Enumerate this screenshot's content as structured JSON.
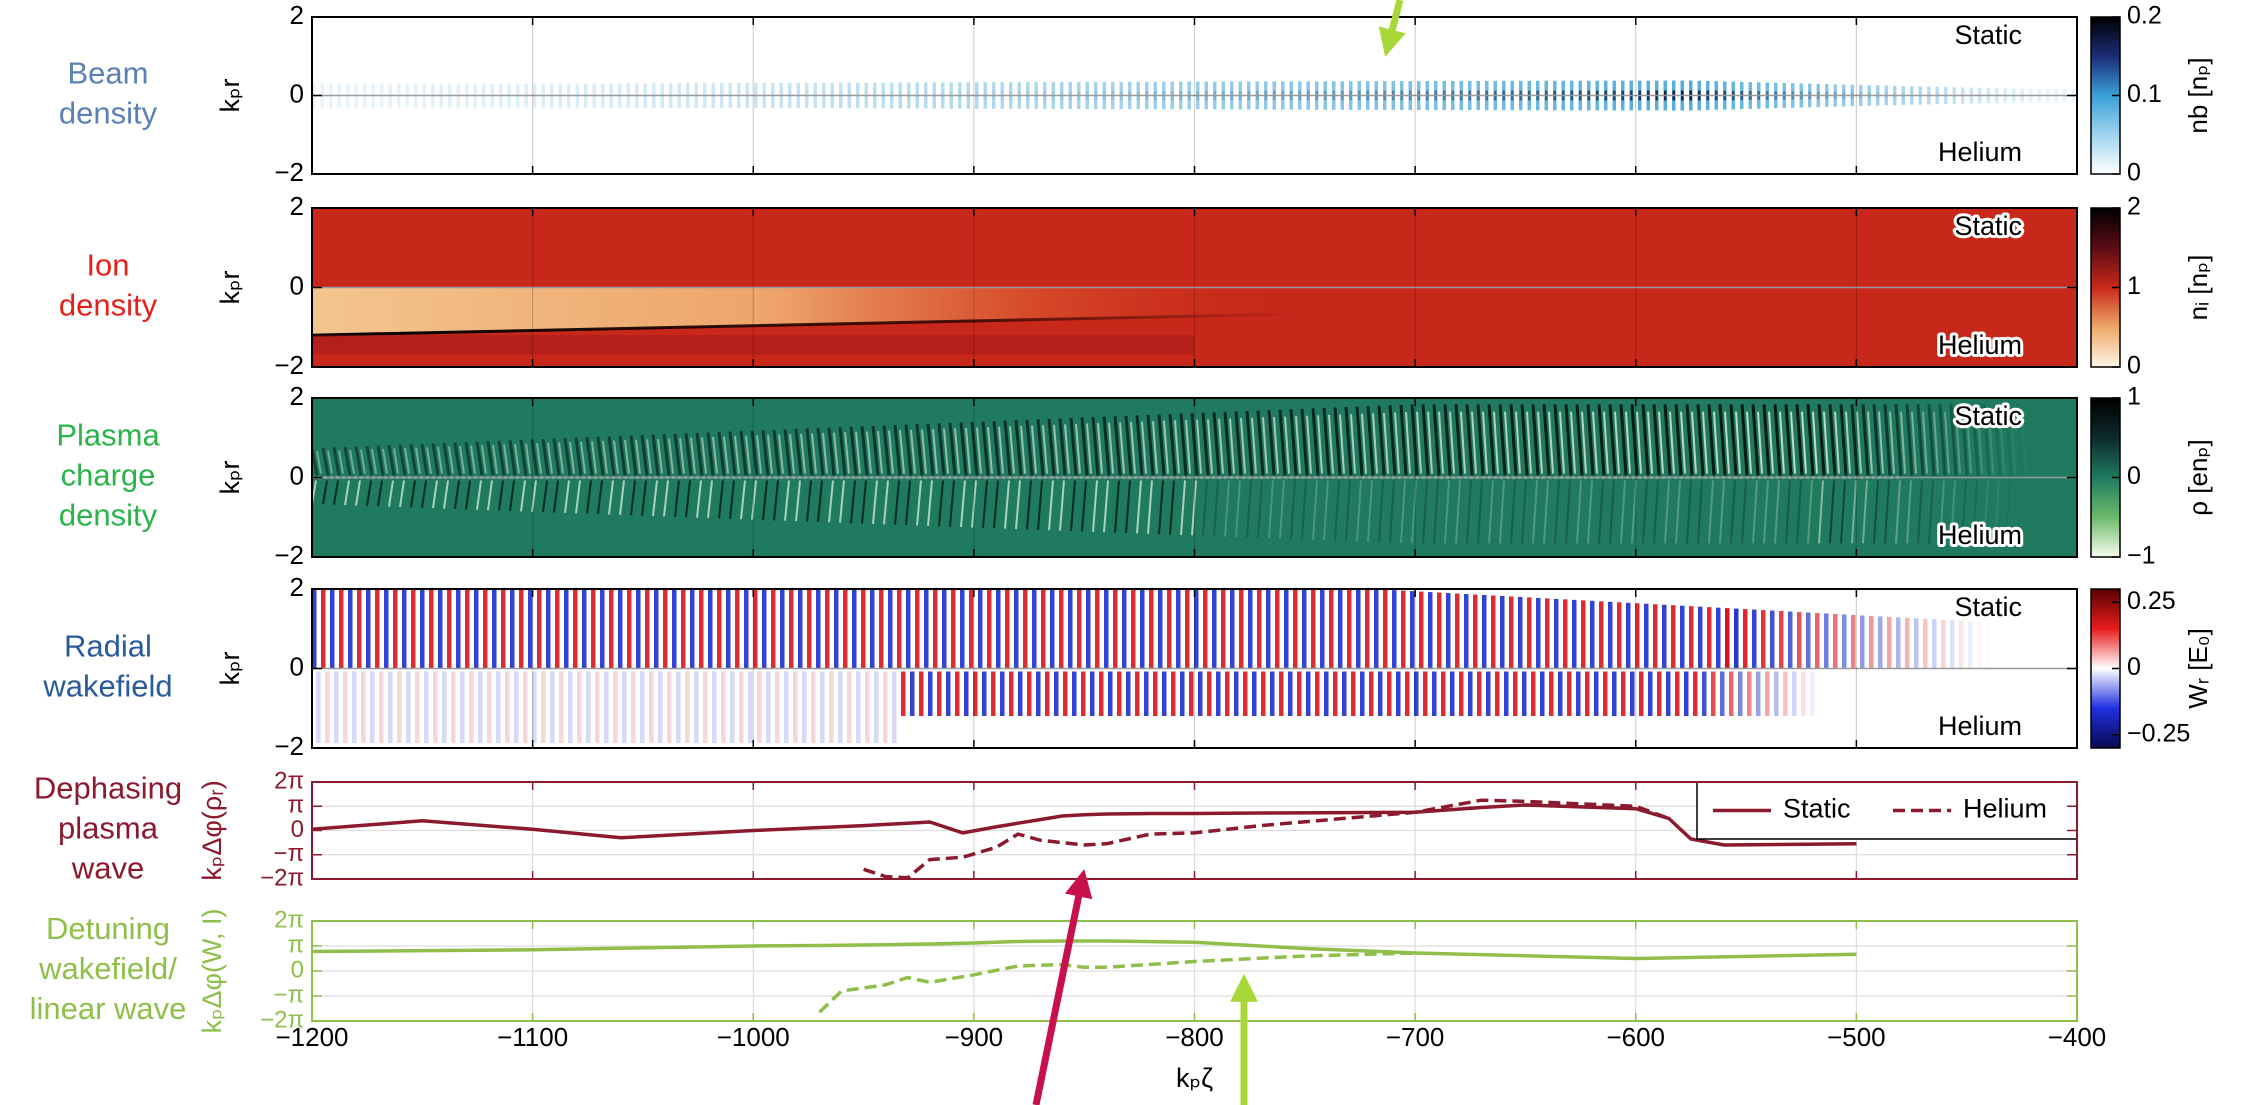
{
  "chart_data": [
    {
      "type": "heatmap",
      "row_label": [
        "Beam",
        "density"
      ],
      "row_label_color": "#5b80b4",
      "ylabel": "kₚr",
      "xlim": [
        -1200,
        -400
      ],
      "ylim": [
        -2,
        2
      ],
      "yticks": [
        {
          "value": -2,
          "label": "−2"
        },
        0,
        2
      ],
      "annotations": [
        "Static",
        "Helium"
      ],
      "colorbar": {
        "label": "nb [nₚ]",
        "lim": [
          0,
          0.2
        ],
        "ticks": [
          0,
          0.1,
          0.2
        ],
        "colors": [
          "#ffffff",
          "#9fd4ef",
          "#3a9fd6",
          "#1c2c78",
          "#000000"
        ]
      }
    },
    {
      "type": "heatmap",
      "row_label": [
        "Ion",
        "density"
      ],
      "row_label_color": "#e3211c",
      "ylabel": "kₚr",
      "xlim": [
        -1200,
        -400
      ],
      "ylim": [
        -2,
        2
      ],
      "yticks": [
        {
          "value": -2,
          "label": "−2"
        },
        0,
        2
      ],
      "annotations": [
        "Static",
        "Helium"
      ],
      "colorbar": {
        "label": "nᵢ [nₚ]",
        "lim": [
          0,
          2
        ],
        "ticks": [
          0,
          1,
          2
        ],
        "colors": [
          "#fdf6e8",
          "#eea868",
          "#c8281a",
          "#5c0c16",
          "#000000"
        ]
      }
    },
    {
      "type": "heatmap",
      "row_label": [
        "Plasma",
        "charge",
        "density"
      ],
      "row_label_color": "#2bb34a",
      "ylabel": "kₚr",
      "xlim": [
        -1200,
        -400
      ],
      "ylim": [
        -2,
        2
      ],
      "yticks": [
        {
          "value": -2,
          "label": "−2"
        },
        0,
        2
      ],
      "annotations": [
        "Static",
        "Helium"
      ],
      "colorbar": {
        "label": "ρ [enₚ]",
        "lim": [
          -1,
          1
        ],
        "ticks": [
          {
            "value": -1,
            "label": "−1"
          },
          0,
          1
        ],
        "colors": [
          "#f7fbef",
          "#6cba6a",
          "#1f7a60",
          "#0d2a2c",
          "#000000"
        ]
      }
    },
    {
      "type": "heatmap",
      "row_label": [
        "Radial",
        "wakefield"
      ],
      "row_label_color": "#2a5a9c",
      "ylabel": "kₚr",
      "xlim": [
        -1200,
        -400
      ],
      "ylim": [
        -2,
        2
      ],
      "yticks": [
        {
          "value": -2,
          "label": "−2"
        },
        0,
        2
      ],
      "annotations": [
        "Static",
        "Helium"
      ],
      "colorbar": {
        "label": "Wᵣ [E₀]",
        "lim": [
          -0.3,
          0.3
        ],
        "ticks": [
          {
            "value": -0.25,
            "label": "−0.25"
          },
          0,
          0.25
        ],
        "colors": [
          "#0a0a50",
          "#2030e0",
          "#ffffff",
          "#e81c1c",
          "#5a0000"
        ]
      }
    },
    {
      "type": "line",
      "row_label": [
        "Dephasing",
        "plasma",
        "wave"
      ],
      "row_label_color": "#8b1a2e",
      "color": "#8b1a2e",
      "ylabel": "kₚΔφ(ρᵣ)",
      "xlim": [
        -1200,
        -400
      ],
      "ylim": [
        -2,
        2
      ],
      "yticks": [
        {
          "value": -2,
          "label": "−2π"
        },
        {
          "value": -1,
          "label": "−π"
        },
        0,
        {
          "value": 1,
          "label": "π"
        },
        {
          "value": 2,
          "label": "2π"
        }
      ],
      "legend": "upper right",
      "x": [
        -1200,
        -1150,
        -1100,
        -1060,
        -1000,
        -950,
        -940,
        -930,
        -920,
        -905,
        -890,
        -880,
        -870,
        -860,
        -850,
        -840,
        -820,
        -800,
        -770,
        -700,
        -670,
        -650,
        -600,
        -585,
        -575,
        -560,
        -500
      ],
      "series": [
        {
          "name": "Static",
          "color": "#8b1a2e",
          "dash": false,
          "values": [
            0.05,
            0.4,
            0.05,
            -0.3,
            0.0,
            0.2,
            0.25,
            0.3,
            0.35,
            -0.1,
            0.15,
            0.3,
            0.45,
            0.6,
            0.65,
            0.68,
            0.7,
            0.7,
            0.72,
            0.75,
            0.95,
            1.05,
            0.9,
            0.5,
            -0.35,
            -0.6,
            -0.55
          ]
        },
        {
          "name": "Helium",
          "color": "#8b1a2e",
          "dash": true,
          "values": [
            null,
            null,
            null,
            null,
            null,
            -1.6,
            -1.9,
            -1.95,
            -1.2,
            -1.1,
            -0.7,
            -0.15,
            -0.4,
            -0.5,
            -0.6,
            -0.55,
            -0.15,
            -0.1,
            0.2,
            0.75,
            1.25,
            1.2,
            1.0,
            0.5,
            null,
            null,
            null
          ]
        }
      ]
    },
    {
      "type": "line",
      "row_label": [
        "Detuning",
        "wakefield/",
        "linear wave"
      ],
      "row_label_color": "#8fbf4a",
      "color": "#8fbf4a",
      "ylabel": "kₚΔφ(W, I)",
      "xlim": [
        -1200,
        -400
      ],
      "ylim": [
        -2,
        2
      ],
      "yticks": [
        {
          "value": -2,
          "label": "−2π"
        },
        {
          "value": -1,
          "label": "−π"
        },
        0,
        {
          "value": 1,
          "label": "π"
        },
        {
          "value": 2,
          "label": "2π"
        }
      ],
      "xlabel": "kₚζ",
      "xticks": [
        {
          "value": -1200,
          "label": "−1200"
        },
        {
          "value": -1100,
          "label": "−1100"
        },
        {
          "value": -1000,
          "label": "−1000"
        },
        {
          "value": -900,
          "label": "−900"
        },
        {
          "value": -800,
          "label": "−800"
        },
        {
          "value": -700,
          "label": "−700"
        },
        {
          "value": -600,
          "label": "−600"
        },
        {
          "value": -500,
          "label": "−500"
        },
        {
          "value": -400,
          "label": "−400"
        }
      ],
      "x": [
        -1200,
        -1100,
        -1000,
        -970,
        -960,
        -940,
        -930,
        -920,
        -900,
        -880,
        -860,
        -850,
        -840,
        -800,
        -750,
        -700,
        -600,
        -500
      ],
      "series": [
        {
          "name": "Static",
          "color": "#8fbf4a",
          "dash": false,
          "values": [
            0.78,
            0.85,
            1.0,
            1.02,
            1.03,
            1.05,
            1.07,
            1.08,
            1.12,
            1.18,
            1.2,
            1.2,
            1.2,
            1.15,
            0.9,
            0.72,
            0.5,
            0.67
          ]
        },
        {
          "name": "Helium",
          "color": "#8fbf4a",
          "dash": true,
          "values": [
            null,
            null,
            null,
            -1.65,
            -0.8,
            -0.55,
            -0.26,
            -0.45,
            -0.15,
            0.2,
            0.26,
            0.15,
            0.15,
            0.38,
            0.6,
            0.72,
            null,
            null
          ]
        }
      ]
    }
  ]
}
